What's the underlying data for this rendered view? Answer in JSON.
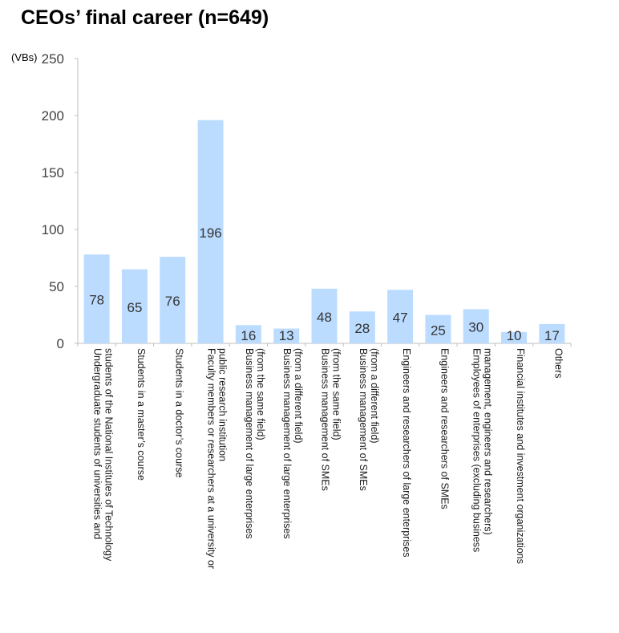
{
  "chart_data": {
    "type": "bar",
    "title": "CEOs’ final career (n=649)",
    "unit_label": "(VBs)",
    "ylim": [
      0,
      250
    ],
    "yticks": [
      "0",
      "50",
      "100",
      "150",
      "200",
      "250"
    ],
    "grid": false,
    "bar_color": "#bbdcff",
    "categories": [
      [
        "Undergraduate students of universities and",
        "students of the National Institutes of Technology"
      ],
      [
        "Students in a master’s course"
      ],
      [
        "Students in a doctor’s course"
      ],
      [
        "Faculty members or researchers at a university or",
        "public research institution"
      ],
      [
        "Business management of large enterprises",
        "(from the same field)"
      ],
      [
        "Business management of large enterprises",
        "(from a different field)"
      ],
      [
        "Business management of SMEs",
        "(from the same field)"
      ],
      [
        "Business management of SMEs",
        "(from a different field)"
      ],
      [
        "Engineers and researchers of large enterprises"
      ],
      [
        "Engineers and researchers of SMEs"
      ],
      [
        "Employees of enterprises (excluding business",
        "management, engineers and researchers)"
      ],
      [
        "Financial institutes and investment organizations"
      ],
      [
        "Others"
      ]
    ],
    "values": [
      78,
      65,
      76,
      196,
      16,
      13,
      48,
      28,
      47,
      25,
      30,
      10,
      17
    ],
    "data_labels": [
      "78",
      "65",
      "76",
      "196",
      "16",
      "13",
      "48",
      "28",
      "47",
      "25",
      "30",
      "10",
      "17"
    ]
  }
}
